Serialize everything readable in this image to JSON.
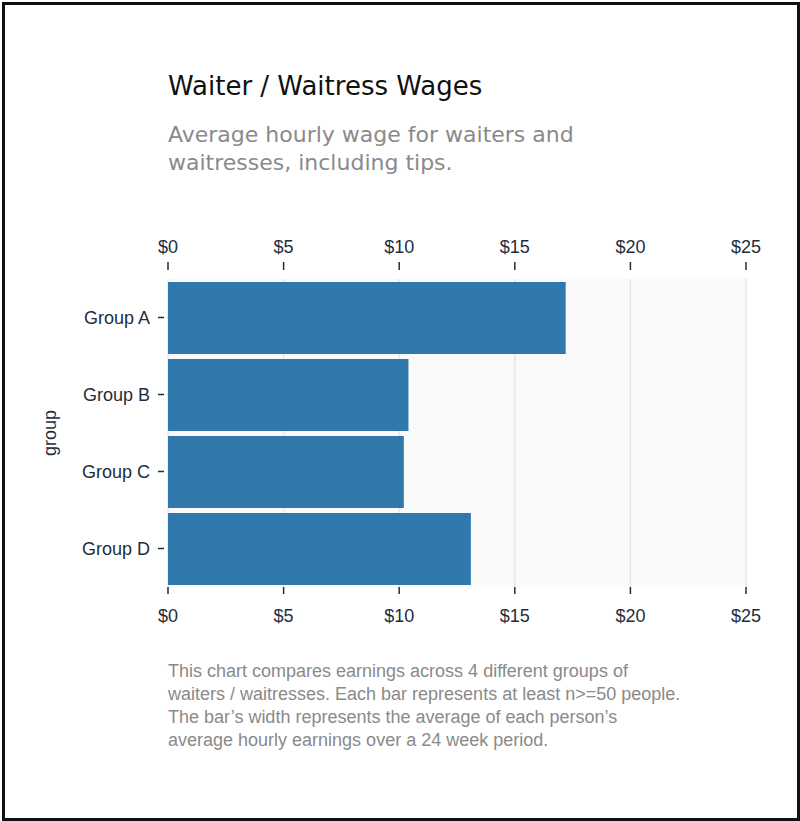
{
  "chart_data": {
    "type": "bar",
    "orientation": "horizontal",
    "title": "Waiter / Waitress Wages",
    "subtitle": [
      "Average hourly wage for waiters and",
      "waitresses, including tips."
    ],
    "y_label": "group",
    "categories": [
      "Group A",
      "Group B",
      "Group C",
      "Group D"
    ],
    "values": [
      17.2,
      10.4,
      10.2,
      13.1
    ],
    "color": "#2f79ad",
    "xlim": [
      0,
      25
    ],
    "xticks": [
      {
        "value": 0,
        "label": "$0"
      },
      {
        "value": 5,
        "label": "$5"
      },
      {
        "value": 10,
        "label": "$10"
      },
      {
        "value": 15,
        "label": "$15"
      },
      {
        "value": 20,
        "label": "$20"
      },
      {
        "value": 25,
        "label": "$25"
      }
    ],
    "grid": true,
    "note": [
      "This chart compares earnings across 4 different groups of",
      "waiters / waitresses. Each bar represents at least n>=50 people.",
      "The bar’s width represents the average of each person’s",
      "average hourly earnings over a 24 week period."
    ]
  }
}
